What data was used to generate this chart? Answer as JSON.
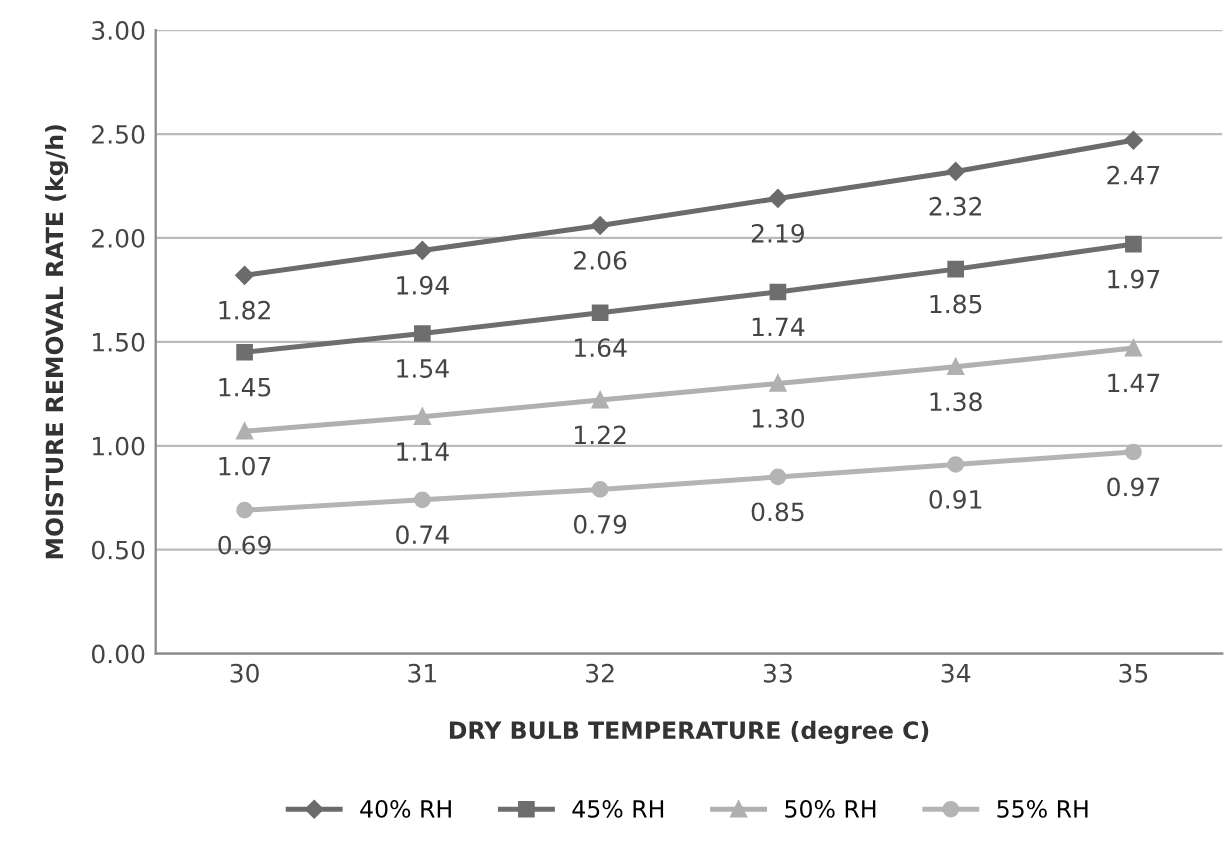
{
  "chart_data": {
    "type": "line",
    "xlabel": "DRY BULB TEMPERATURE (degree C)",
    "ylabel": "MOISTURE REMOVAL RATE (kg/h)",
    "categories": [
      "30",
      "31",
      "32",
      "33",
      "34",
      "35"
    ],
    "series": [
      {
        "name": "40% RH",
        "color": "#6b6b6b",
        "marker": "diamond",
        "values": [
          1.82,
          1.94,
          2.06,
          2.19,
          2.32,
          2.47
        ],
        "value_labels": [
          "1.82",
          "1.94",
          "2.06",
          "2.19",
          "2.32",
          "2.47"
        ]
      },
      {
        "name": "45% RH",
        "color": "#6e6e6e",
        "marker": "square",
        "values": [
          1.45,
          1.54,
          1.64,
          1.74,
          1.85,
          1.97
        ],
        "value_labels": [
          "1.45",
          "1.54",
          "1.64",
          "1.74",
          "1.85",
          "1.97"
        ]
      },
      {
        "name": "50% RH",
        "color": "#b0b0b0",
        "marker": "triangle",
        "values": [
          1.07,
          1.14,
          1.22,
          1.3,
          1.38,
          1.47
        ],
        "value_labels": [
          "1.07",
          "1.14",
          "1.22",
          "1.30",
          "1.38",
          "1.47"
        ]
      },
      {
        "name": "55% RH",
        "color": "#b4b4b4",
        "marker": "circle",
        "values": [
          0.69,
          0.74,
          0.79,
          0.85,
          0.91,
          0.97
        ],
        "value_labels": [
          "0.69",
          "0.74",
          "0.79",
          "0.85",
          "0.91",
          "0.97"
        ]
      }
    ],
    "ylim": [
      0,
      3
    ],
    "yticks": [
      {
        "value": 0,
        "label": "0.00"
      },
      {
        "value": 0.5,
        "label": "0.50"
      },
      {
        "value": 1,
        "label": "1.00"
      },
      {
        "value": 1.5,
        "label": "1.50"
      },
      {
        "value": 2,
        "label": "2.00"
      },
      {
        "value": 2.5,
        "label": "2.50"
      },
      {
        "value": 3,
        "label": "3.00"
      }
    ],
    "grid": "y",
    "legend": "bottom",
    "line_style": "solid"
  }
}
